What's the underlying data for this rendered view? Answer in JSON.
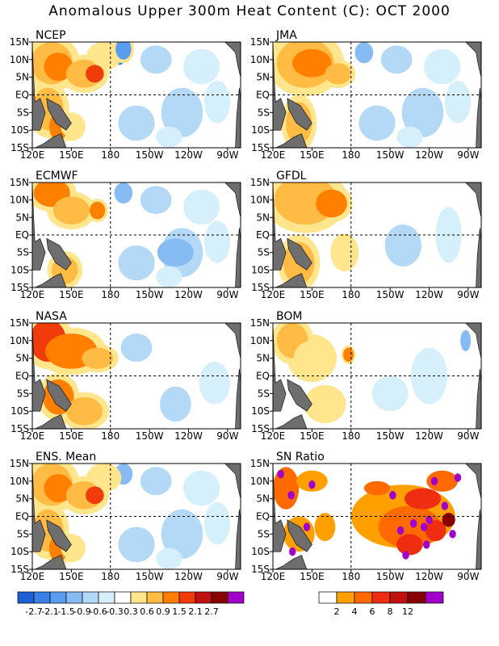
{
  "title": "Anomalous Upper 300m Heat Content (C): OCT 2000",
  "chart_data": {
    "type": "heatmap",
    "lat_ticks": [
      "15N",
      "10N",
      "5N",
      "EQ",
      "5S",
      "10S",
      "15S"
    ],
    "lon_ticks": [
      "120E",
      "150E",
      "180",
      "150W",
      "120W",
      "90W"
    ],
    "xlim": [
      120,
      280
    ],
    "ylim": [
      -15,
      15
    ],
    "panels": [
      {
        "name": "NCEP"
      },
      {
        "name": "JMA"
      },
      {
        "name": "ECMWF"
      },
      {
        "name": "GFDL"
      },
      {
        "name": "NASA"
      },
      {
        "name": "BOM"
      },
      {
        "name": "ENS. Mean"
      },
      {
        "name": "SN Ratio"
      }
    ],
    "anomaly_colorbar": {
      "labels": [
        "-2.7",
        "-2.1",
        "-1.5",
        "-0.9",
        "-0.6",
        "-0.3",
        "0.3",
        "0.6",
        "0.9",
        "1.5",
        "2.1",
        "2.7"
      ],
      "colors": [
        "#1f5fd6",
        "#3a7fe8",
        "#5a9cf0",
        "#86bbf4",
        "#b4d9f7",
        "#d6f0fb",
        "#ffffff",
        "#ffe58c",
        "#ffbb44",
        "#ff8000",
        "#ef3c0a",
        "#c01010",
        "#8a0000",
        "#a000c8"
      ]
    },
    "ratio_colorbar": {
      "labels": [
        "2",
        "4",
        "6",
        "8",
        "12"
      ],
      "colors": [
        "#ffffff",
        "#ffa000",
        "#ff6a00",
        "#ef2d10",
        "#c01010",
        "#8a0000",
        "#a000c8"
      ]
    }
  }
}
